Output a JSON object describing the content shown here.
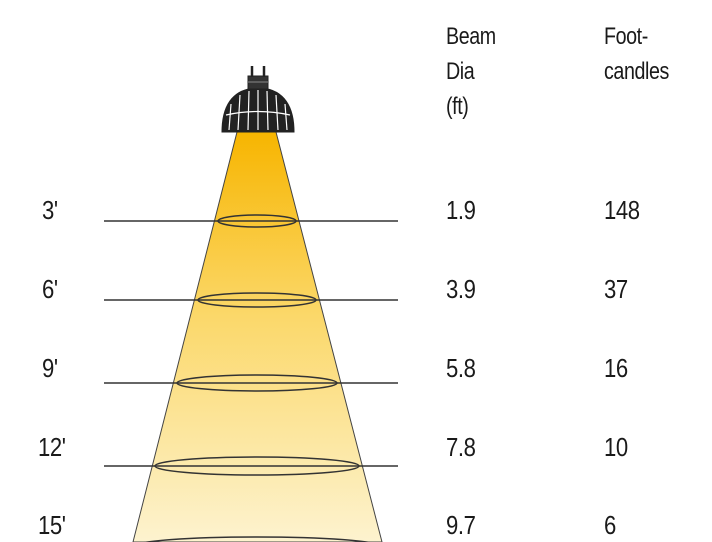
{
  "headers": {
    "beam_dia": [
      "Beam",
      "Dia",
      "(ft)"
    ],
    "footcandles": [
      "Foot-",
      "candles"
    ]
  },
  "rows": [
    {
      "distance": "3'",
      "beam_dia": "1.9",
      "footcandles": "148"
    },
    {
      "distance": "6'",
      "beam_dia": "3.9",
      "footcandles": "37"
    },
    {
      "distance": "9'",
      "beam_dia": "5.8",
      "footcandles": "16"
    },
    {
      "distance": "12'",
      "beam_dia": "7.8",
      "footcandles": "10"
    },
    {
      "distance": "15'",
      "beam_dia": "9.7",
      "footcandles": "6"
    }
  ],
  "colors": {
    "beam_top": "#f7b500",
    "beam_bottom": "#fdf3cf",
    "lines": "#333333"
  }
}
